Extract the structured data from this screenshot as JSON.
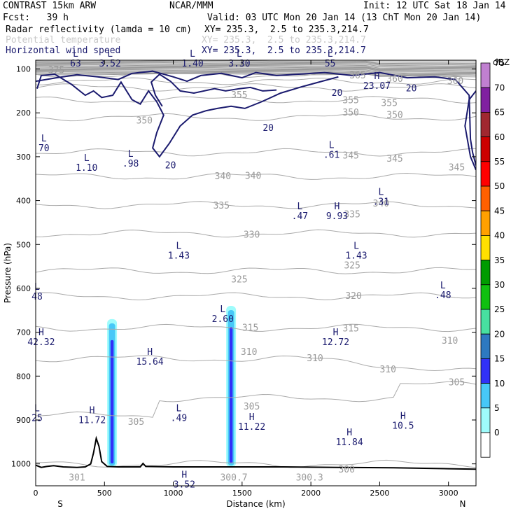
{
  "header": {
    "title": "CONTRAST 15km ARW",
    "center": "NCAR/MMM",
    "init": "Init: 12 UTC Sat 18 Jan 14",
    "fcst": "Fcst:   39 h",
    "valid": "Valid: 03 UTC Mon 20 Jan 14 (13 ChT Mon 20 Jan 14)",
    "field1_label": "Radar reflectivity (lamda = 10 cm)",
    "field1_xy": "XY= 235.3,  2.5 to 235.3,214.7",
    "field2_label": "Potential temperature",
    "field2_xy": "XY= 235.3,  2.5 to 235.3,214.7",
    "field3_label": "Horizontal wind speed",
    "field3_xy": "XY= 235.3,  2.5 to 235.3,214.7"
  },
  "colors": {
    "wind_contour": "#1a1a6e",
    "theta_contour": "#aaaaaa",
    "field2_text": "#c8c8c8",
    "field3_text": "#1a1a6e",
    "terrain": "#000000"
  },
  "chart_data": {
    "type": "cross-section",
    "xlabel": "Distance (km)",
    "ylabel": "Pressure (hPa)",
    "xlim": [
      0,
      3200
    ],
    "ylim": [
      1050,
      80
    ],
    "x_ticks": [
      0,
      500,
      1000,
      1500,
      2000,
      2500,
      3000
    ],
    "y_ticks": [
      100,
      200,
      300,
      400,
      500,
      600,
      700,
      800,
      900,
      1000
    ],
    "x_end_labels": {
      "left": "S",
      "right": "N"
    },
    "colorbar": {
      "unit": "dBZ",
      "levels": [
        0,
        5,
        10,
        15,
        20,
        25,
        30,
        35,
        40,
        45,
        50,
        55,
        60,
        65,
        70,
        75
      ],
      "colors": [
        "#ffffff",
        "#9ffcfc",
        "#47c8f8",
        "#3131f8",
        "#2d79c0",
        "#47e0a0",
        "#10c010",
        "#009c00",
        "#ffe000",
        "#ffa000",
        "#ff6000",
        "#ff0000",
        "#cc0000",
        "#a02830",
        "#8020a0",
        "#c080d0"
      ]
    },
    "theta_labels": [
      {
        "text": "375",
        "x": 150,
        "p": 103
      },
      {
        "text": "365",
        "x": 2340,
        "p": 115
      },
      {
        "text": "360",
        "x": 2610,
        "p": 123
      },
      {
        "text": "360",
        "x": 3050,
        "p": 128
      },
      {
        "text": "355",
        "x": 1480,
        "p": 160
      },
      {
        "text": "355",
        "x": 2290,
        "p": 172
      },
      {
        "text": "355",
        "x": 2570,
        "p": 178
      },
      {
        "text": "350",
        "x": 790,
        "p": 218
      },
      {
        "text": "350",
        "x": 2290,
        "p": 200
      },
      {
        "text": "350",
        "x": 2610,
        "p": 205
      },
      {
        "text": "345",
        "x": 2290,
        "p": 298
      },
      {
        "text": "345",
        "x": 2610,
        "p": 305
      },
      {
        "text": "345",
        "x": 3060,
        "p": 325
      },
      {
        "text": "340",
        "x": 1360,
        "p": 345
      },
      {
        "text": "340",
        "x": 1580,
        "p": 344
      },
      {
        "text": "340",
        "x": 2510,
        "p": 407
      },
      {
        "text": "335",
        "x": 1350,
        "p": 412
      },
      {
        "text": "335",
        "x": 2300,
        "p": 432
      },
      {
        "text": "330",
        "x": 1570,
        "p": 478
      },
      {
        "text": "325",
        "x": 1480,
        "p": 580
      },
      {
        "text": "325",
        "x": 2300,
        "p": 548
      },
      {
        "text": "320",
        "x": 2310,
        "p": 618
      },
      {
        "text": "315",
        "x": 1560,
        "p": 690
      },
      {
        "text": "315",
        "x": 2290,
        "p": 692
      },
      {
        "text": "310",
        "x": 1550,
        "p": 745
      },
      {
        "text": "310",
        "x": 2030,
        "p": 760
      },
      {
        "text": "310",
        "x": 2560,
        "p": 785
      },
      {
        "text": "310",
        "x": 3010,
        "p": 720
      },
      {
        "text": "305",
        "x": 730,
        "p": 905
      },
      {
        "text": "305",
        "x": 1570,
        "p": 870
      },
      {
        "text": "305",
        "x": 3060,
        "p": 815
      },
      {
        "text": "301",
        "x": 300,
        "p": 1032
      },
      {
        "text": "300.7",
        "x": 1440,
        "p": 1032
      },
      {
        "text": "300.3",
        "x": 1990,
        "p": 1032
      },
      {
        "text": "300",
        "x": 2260,
        "p": 1013
      }
    ],
    "wind_labels": [
      {
        "text": "20",
        "x": 2730,
        "p": 145
      },
      {
        "text": "20",
        "x": 2190,
        "p": 155
      },
      {
        "text": "20",
        "x": 1690,
        "p": 235
      },
      {
        "text": "20",
        "x": 980,
        "p": 320
      }
    ],
    "extrema": [
      {
        "type": "L",
        "value": "63",
        "x": 290,
        "p": 72
      },
      {
        "type": "L",
        "value": "3.52",
        "x": 540,
        "p": 72
      },
      {
        "type": "L",
        "value": "1.40",
        "x": 1140,
        "p": 72
      },
      {
        "type": "L",
        "value": "3.30",
        "x": 1480,
        "p": 72
      },
      {
        "type": "L",
        "value": "55",
        "x": 2140,
        "p": 72
      },
      {
        "type": "H",
        "value": "23.07",
        "x": 2480,
        "p": 123
      },
      {
        "type": "L",
        "value": "70",
        "x": 60,
        "p": 265
      },
      {
        "type": "L",
        "value": "1.10",
        "x": 370,
        "p": 310
      },
      {
        "type": "L",
        "value": ".98",
        "x": 690,
        "p": 300
      },
      {
        "type": "L",
        "value": ".61",
        "x": 2150,
        "p": 280
      },
      {
        "type": "L",
        "value": ".47",
        "x": 1920,
        "p": 420
      },
      {
        "type": "H",
        "value": "9.93",
        "x": 2190,
        "p": 420
      },
      {
        "type": "L",
        "value": ".31",
        "x": 2510,
        "p": 387
      },
      {
        "type": "L",
        "value": "1.43",
        "x": 1040,
        "p": 510
      },
      {
        "type": "L",
        "value": "1.43",
        "x": 2330,
        "p": 510
      },
      {
        "type": "L",
        "value": "48",
        "x": 10,
        "p": 603
      },
      {
        "type": "L",
        "value": ".48",
        "x": 2960,
        "p": 600
      },
      {
        "type": "L",
        "value": "2.60",
        "x": 1360,
        "p": 654
      },
      {
        "type": "H",
        "value": "42.32",
        "x": 40,
        "p": 707
      },
      {
        "type": "H",
        "value": "12.72",
        "x": 2180,
        "p": 707
      },
      {
        "type": "H",
        "value": "15.64",
        "x": 830,
        "p": 752
      },
      {
        "type": "H",
        "value": "11.72",
        "x": 410,
        "p": 885
      },
      {
        "type": "L",
        "value": ".49",
        "x": 1040,
        "p": 880
      },
      {
        "type": "H",
        "value": "11.22",
        "x": 1570,
        "p": 900
      },
      {
        "type": "H",
        "value": "10.5",
        "x": 2670,
        "p": 898
      },
      {
        "type": "H",
        "value": "11.84",
        "x": 2280,
        "p": 935
      },
      {
        "type": "L",
        "value": "25",
        "x": 10,
        "p": 880
      },
      {
        "type": "H",
        "value": "3.52",
        "x": 1080,
        "p": 1032
      }
    ],
    "terrain_profile": [
      [
        0,
        1003
      ],
      [
        40,
        1008
      ],
      [
        80,
        1006
      ],
      [
        130,
        1004
      ],
      [
        200,
        1007
      ],
      [
        300,
        1008
      ],
      [
        360,
        1007
      ],
      [
        400,
        1000
      ],
      [
        420,
        975
      ],
      [
        440,
        942
      ],
      [
        460,
        960
      ],
      [
        480,
        995
      ],
      [
        520,
        1006
      ],
      [
        600,
        1007
      ],
      [
        760,
        1007
      ],
      [
        780,
        999
      ],
      [
        800,
        1006
      ],
      [
        1000,
        1007
      ],
      [
        1400,
        1007
      ],
      [
        1800,
        1007
      ],
      [
        2200,
        1008
      ],
      [
        2600,
        1009
      ],
      [
        3000,
        1011
      ],
      [
        3200,
        1012
      ]
    ],
    "reflectivity_columns": [
      {
        "x_center": 555,
        "p_top": 670,
        "p_bottom": 1007,
        "peak_dbz": 20
      },
      {
        "x_center": 1420,
        "p_top": 640,
        "p_bottom": 1007,
        "peak_dbz": 15
      }
    ]
  }
}
